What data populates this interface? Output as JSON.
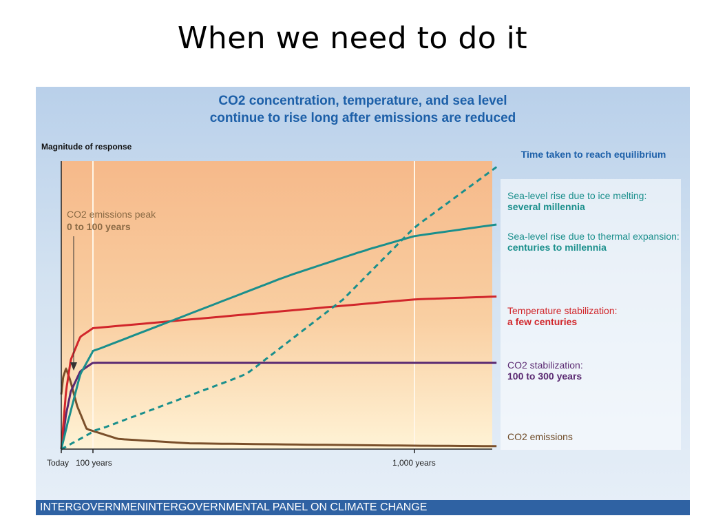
{
  "slide": {
    "title": "When we need to do it",
    "footer": "INTERGOVERNMENINTERGOVERNMENTAL PANEL ON CLIMATE CHANGE"
  },
  "chart_data": {
    "type": "line",
    "title_line1": "CO2 concentration, temperature, and sea level",
    "title_line2": "continue to rise long after emissions are reduced",
    "ylabel": "Magnitude of response",
    "xlabel": "",
    "x_ticks": [
      "Today",
      "100 years",
      "1,000 years"
    ],
    "x_scale": "log-like (0 to ~1,800 years)",
    "grid": "vertical lines at 100 years and 1,000 years",
    "legend_placement": "right",
    "legend_title": "Time taken to reach equilibrium",
    "annotation": {
      "label": "CO2 emissions peak",
      "sublabel": "0 to 100 years"
    },
    "series": [
      {
        "name": "Sea-level rise due to ice melting",
        "detail": "several millennia",
        "color": "#1a8f8c",
        "dashed": true,
        "points": [
          [
            0,
            0.0
          ],
          [
            1,
            0.0
          ],
          [
            100,
            0.06
          ],
          [
            300,
            0.26
          ],
          [
            600,
            0.52
          ],
          [
            1000,
            0.77
          ],
          [
            1800,
            0.98
          ]
        ]
      },
      {
        "name": "Sea-level rise due to thermal expansion",
        "detail": "centuries to millennia",
        "color": "#1a8f8c",
        "dashed": false,
        "points": [
          [
            0,
            0.0
          ],
          [
            20,
            0.09
          ],
          [
            60,
            0.26
          ],
          [
            100,
            0.34
          ],
          [
            200,
            0.47
          ],
          [
            400,
            0.6
          ],
          [
            700,
            0.69
          ],
          [
            1000,
            0.74
          ],
          [
            1800,
            0.78
          ]
        ]
      },
      {
        "name": "Temperature stabilization",
        "detail": "a few centuries",
        "color": "#d1262b",
        "dashed": false,
        "points": [
          [
            0,
            0.0
          ],
          [
            15,
            0.2
          ],
          [
            30,
            0.31
          ],
          [
            60,
            0.39
          ],
          [
            100,
            0.42
          ],
          [
            200,
            0.45
          ],
          [
            500,
            0.49
          ],
          [
            1000,
            0.52
          ],
          [
            1800,
            0.53
          ]
        ]
      },
      {
        "name": "CO2 stabilization",
        "detail": "100 to 300 years",
        "color": "#5b2a72",
        "dashed": false,
        "points": [
          [
            0,
            0.0
          ],
          [
            15,
            0.12
          ],
          [
            30,
            0.2
          ],
          [
            60,
            0.27
          ],
          [
            100,
            0.3
          ],
          [
            150,
            0.3
          ],
          [
            1800,
            0.3
          ]
        ]
      },
      {
        "name": "CO2 emissions",
        "detail": "",
        "color": "#7a4f2a",
        "dashed": false,
        "points": [
          [
            0,
            0.19
          ],
          [
            6,
            0.25
          ],
          [
            15,
            0.28
          ],
          [
            28,
            0.24
          ],
          [
            50,
            0.15
          ],
          [
            80,
            0.07
          ],
          [
            120,
            0.035
          ],
          [
            200,
            0.02
          ],
          [
            500,
            0.015
          ],
          [
            1000,
            0.012
          ],
          [
            1800,
            0.01
          ]
        ]
      }
    ]
  }
}
